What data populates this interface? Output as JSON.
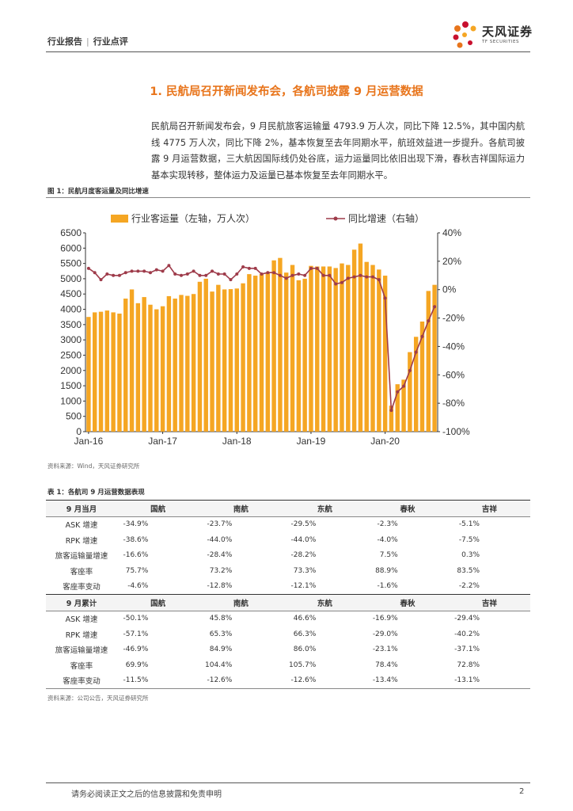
{
  "header": {
    "left": "行业报告",
    "right": "行业点评",
    "logo_cn": "天风证券",
    "logo_en": "TF SECURITIES"
  },
  "section": {
    "title": "1. 民航局召开新闻发布会，各航司披露 9 月运营数据",
    "paragraph": "民航局召开新闻发布会，9 月民航旅客运输量 4793.9 万人次，同比下降 12.5%，其中国内航线 4775 万人次，同比下降 2%，基本恢复至去年同期水平，航班效益进一步提升。各航司披露 9 月运营数据，三大航因国际线仍处谷底，运力运量同比依旧出现下滑，春秋吉祥国际运力基本实现转移，整体运力及运量已基本恢复至去年同期水平。"
  },
  "figure": {
    "title": "图 1：民航月度客运量及同比增速",
    "source": "资料来源：Wind，天风证券研究所"
  },
  "chart_data": {
    "type": "bar",
    "x": [
      "Jan-16",
      "Feb-16",
      "Mar-16",
      "Apr-16",
      "May-16",
      "Jun-16",
      "Jul-16",
      "Aug-16",
      "Sep-16",
      "Oct-16",
      "Nov-16",
      "Dec-16",
      "Jan-17",
      "Feb-17",
      "Mar-17",
      "Apr-17",
      "May-17",
      "Jun-17",
      "Jul-17",
      "Aug-17",
      "Sep-17",
      "Oct-17",
      "Nov-17",
      "Dec-17",
      "Jan-18",
      "Feb-18",
      "Mar-18",
      "Apr-18",
      "May-18",
      "Jun-18",
      "Jul-18",
      "Aug-18",
      "Sep-18",
      "Oct-18",
      "Nov-18",
      "Dec-18",
      "Jan-19",
      "Feb-19",
      "Mar-19",
      "Apr-19",
      "May-19",
      "Jun-19",
      "Jul-19",
      "Aug-19",
      "Sep-19",
      "Oct-19",
      "Nov-19",
      "Dec-19",
      "Jan-20",
      "Feb-20",
      "Mar-20",
      "Apr-20",
      "May-20",
      "Jun-20",
      "Jul-20",
      "Aug-20",
      "Sep-20"
    ],
    "x_tick_labels": [
      "Jan-16",
      "Jan-17",
      "Jan-18",
      "Jan-19",
      "Jan-20"
    ],
    "series": [
      {
        "name": "行业客运量（左轴，万人次）",
        "type": "bar",
        "axis": "left",
        "color": "#f5a623",
        "values": [
          3750,
          3900,
          3920,
          3960,
          3900,
          3860,
          4350,
          4650,
          4200,
          4400,
          4150,
          4000,
          4100,
          4430,
          4350,
          4470,
          4440,
          4500,
          4900,
          5000,
          4580,
          4800,
          4650,
          4660,
          4680,
          4850,
          5150,
          5100,
          5150,
          5200,
          5600,
          5680,
          5200,
          5450,
          4950,
          5000,
          5420,
          5400,
          5400,
          5400,
          5350,
          5500,
          5450,
          5950,
          6150,
          5550,
          5450,
          5300,
          5100,
          850,
          1550,
          1700,
          2600,
          3100,
          3600,
          4600,
          4800
        ]
      },
      {
        "name": "同比增速（右轴）",
        "type": "line",
        "axis": "right",
        "color": "#9e3b4a",
        "values": [
          15,
          12,
          7,
          11,
          10,
          10,
          12,
          13,
          13,
          13,
          12,
          14,
          13,
          17,
          11,
          10,
          11,
          13,
          10,
          10,
          13,
          11,
          11,
          7,
          11,
          16,
          15,
          15,
          11,
          12,
          12,
          10,
          8,
          10,
          11,
          10,
          15,
          15,
          10,
          10,
          4,
          5,
          8,
          9,
          10,
          9,
          9,
          7,
          -6,
          -85,
          -72,
          -68,
          -57,
          -44,
          -33,
          -22,
          -12
        ]
      }
    ],
    "y_left": {
      "min": 0,
      "max": 6500,
      "ticks": [
        "0",
        "500",
        "1000",
        "1500",
        "2000",
        "2500",
        "3000",
        "3500",
        "4000",
        "4500",
        "5000",
        "5500",
        "6000",
        "6500"
      ]
    },
    "y_right": {
      "min": -100,
      "max": 40,
      "ticks": [
        "-100%",
        "-80%",
        "-60%",
        "-40%",
        "-20%",
        "0%",
        "20%",
        "40%"
      ]
    },
    "legend_position": "top"
  },
  "table": {
    "title": "表 1：各航司 9 月运营数据表现",
    "source": "资料来源：公司公告，天风证券研究所",
    "columns": [
      "国航",
      "南航",
      "东航",
      "春秋",
      "吉祥"
    ],
    "sections": [
      {
        "header": "9 月当月",
        "rows": [
          {
            "label": "ASK 增速",
            "values": [
              "-34.9%",
              "-23.7%",
              "-29.5%",
              "-2.3%",
              "-5.1%"
            ]
          },
          {
            "label": "RPK 增速",
            "values": [
              "-38.6%",
              "-44.0%",
              "-44.0%",
              "-4.0%",
              "-7.5%"
            ]
          },
          {
            "label": "旅客运输量增速",
            "values": [
              "-16.6%",
              "-28.4%",
              "-28.2%",
              "7.5%",
              "0.3%"
            ]
          },
          {
            "label": "客座率",
            "values": [
              "75.7%",
              "73.2%",
              "73.3%",
              "88.9%",
              "83.5%"
            ]
          },
          {
            "label": "客座率变动",
            "values": [
              "-4.6%",
              "-12.8%",
              "-12.1%",
              "-1.6%",
              "-2.2%"
            ]
          }
        ]
      },
      {
        "header": "9 月累计",
        "rows": [
          {
            "label": "ASK 增速",
            "values": [
              "-50.1%",
              "45.8%",
              "46.6%",
              "-16.9%",
              "-29.4%"
            ]
          },
          {
            "label": "RPK 增速",
            "values": [
              "-57.1%",
              "65.3%",
              "66.3%",
              "-29.0%",
              "-40.2%"
            ]
          },
          {
            "label": "旅客运输量增速",
            "values": [
              "-46.9%",
              "84.9%",
              "86.0%",
              "-23.1%",
              "-37.1%"
            ]
          },
          {
            "label": "客座率",
            "values": [
              "69.9%",
              "104.4%",
              "105.7%",
              "78.4%",
              "72.8%"
            ]
          },
          {
            "label": "客座率变动",
            "values": [
              "-11.5%",
              "-12.6%",
              "-12.6%",
              "-13.4%",
              "-13.1%"
            ]
          }
        ]
      }
    ]
  },
  "footer": {
    "disclaimer": "请务必阅读正文之后的信息披露和免责申明",
    "page": "2"
  },
  "colors": {
    "accent": "#e8751c",
    "bar": "#f5a623",
    "line": "#9e3b4a"
  }
}
